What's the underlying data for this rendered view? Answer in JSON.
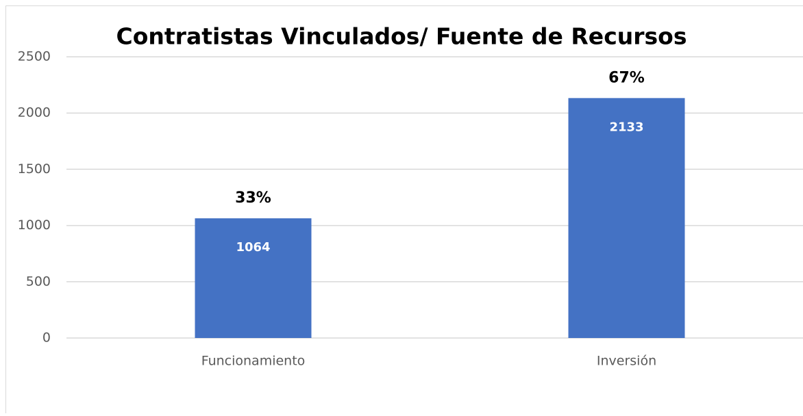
{
  "chart_data": {
    "type": "bar",
    "title": "Contratistas Vinculados/ Fuente de Recursos",
    "categories": [
      "Funcionamiento",
      "Inversión"
    ],
    "values": [
      1064,
      2133
    ],
    "annotations": [
      "33%",
      "67%"
    ],
    "color": "#4472c4",
    "ylim": [
      0,
      2500
    ],
    "yticks": [
      0,
      500,
      1000,
      1500,
      2000,
      2500
    ],
    "grid": true
  }
}
